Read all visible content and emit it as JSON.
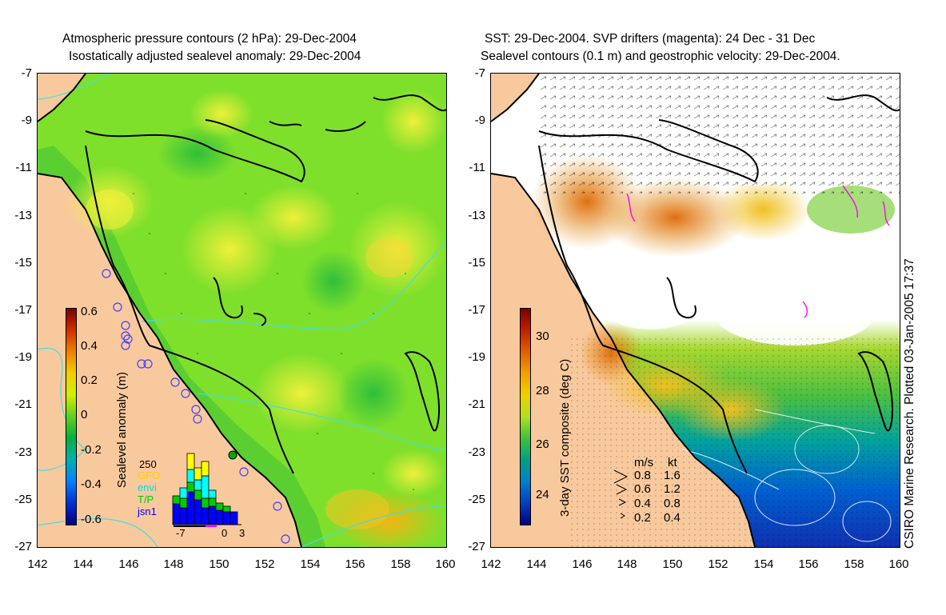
{
  "left_panel": {
    "title_line1": "Atmospheric pressure contours (2 hPa): 29-Dec-2004",
    "title_line2": "Isostatically adjusted sealevel anomaly: 29-Dec-2004",
    "colorbar_label": "Sealevel anomaly (m)",
    "colorbar_ticks": [
      "0.6",
      "0.4",
      "0.2",
      "0",
      "-0.2",
      "-0.4",
      "-0.6"
    ],
    "histogram": {
      "ymax_label": "250",
      "legend": [
        "GFO",
        "envi",
        "T/P",
        "jsn1"
      ],
      "legend_colors": [
        "#ffff00",
        "#00ffff",
        "#00cc00",
        "#0000ff"
      ],
      "x_ticks": [
        "-7",
        "0",
        "3"
      ]
    }
  },
  "right_panel": {
    "title_line1": "SST: 29-Dec-2004. SVP drifters (magenta): 24 Dec - 31 Dec",
    "title_line2": "Sealevel contours (0.1 m) and geostrophic velocity: 29-Dec-2004.",
    "colorbar_label": "3-day SST composite (deg C)",
    "colorbar_ticks": [
      "30",
      "28",
      "26",
      "24"
    ],
    "velocity_legend": {
      "header_ms": "m/s",
      "header_kt": "kt",
      "rows": [
        [
          "0.8",
          "1.6"
        ],
        [
          "0.6",
          "1.2"
        ],
        [
          "0.4",
          "0.8"
        ],
        [
          "0.2",
          "0.4"
        ]
      ]
    }
  },
  "axes": {
    "y_ticks": [
      "-7",
      "-9",
      "-11",
      "-13",
      "-15",
      "-17",
      "-19",
      "-21",
      "-23",
      "-25",
      "-27"
    ],
    "x_ticks": [
      "142",
      "144",
      "146",
      "148",
      "150",
      "152",
      "154",
      "156",
      "158",
      "160"
    ]
  },
  "credit": "CSIRO Marine Research. Plotted 03-Jan-2005 17:37",
  "colors": {
    "land": "#f9c99e",
    "ocean_green": "#7fe02c",
    "ocean_yellow": "#e8ee3c",
    "pressure_contour": "#40e0e0",
    "coast": "#000000",
    "drifter": "#ff00ff"
  }
}
